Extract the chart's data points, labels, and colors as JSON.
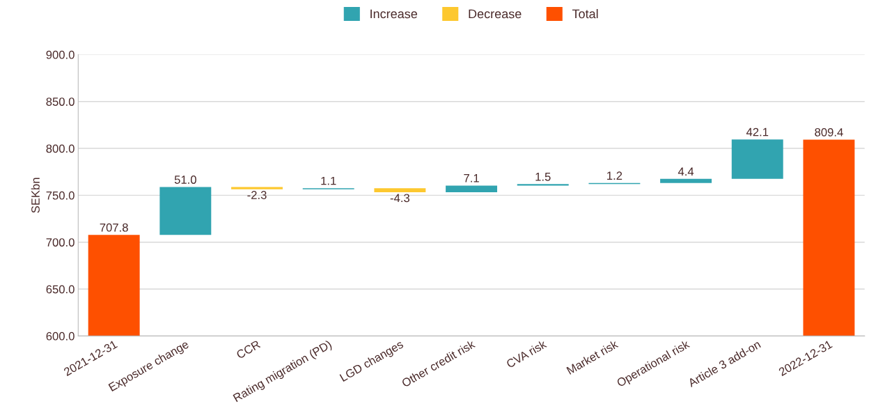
{
  "chart_data": {
    "type": "bar",
    "ylabel": "SEKbn",
    "categories": [
      "2021-12-31",
      "Exposure change",
      "CCR",
      "Rating migration (PD)",
      "LGD changes",
      "Other credit risk",
      "CVA risk",
      "Market risk",
      "Operational risk",
      "Article 3 add-on",
      "2022-12-31"
    ],
    "series": [
      {
        "name": "Increase",
        "color": "#31a4b0",
        "values": [
          null,
          51.0,
          null,
          1.1,
          null,
          7.1,
          1.5,
          1.2,
          4.4,
          42.1,
          null
        ],
        "value_labels": [
          null,
          "51.0",
          null,
          "1.1",
          null,
          "7.1",
          "1.5",
          "1.2",
          "4.4",
          "42.1",
          null
        ],
        "base": [
          null,
          707.8,
          null,
          756.5,
          null,
          753.3,
          760.4,
          761.9,
          763.1,
          767.5,
          null
        ]
      },
      {
        "name": "Decrease",
        "color": "#fdc82f",
        "values": [
          null,
          null,
          -2.3,
          null,
          -4.3,
          null,
          null,
          null,
          null,
          null,
          null
        ],
        "value_labels": [
          null,
          null,
          "-2.3",
          null,
          "-4.3",
          null,
          null,
          null,
          null,
          null,
          null
        ],
        "base": [
          null,
          null,
          758.8,
          null,
          757.6,
          null,
          null,
          null,
          null,
          null,
          null
        ]
      },
      {
        "name": "Total",
        "color": "#fe5000",
        "values": [
          707.8,
          null,
          null,
          null,
          null,
          null,
          null,
          null,
          null,
          null,
          809.4
        ],
        "value_labels": [
          "707.8",
          null,
          null,
          null,
          null,
          null,
          null,
          null,
          null,
          null,
          "809.4"
        ]
      }
    ],
    "ylim": [
      600,
      900
    ],
    "yticks": [
      {
        "value": 600,
        "label": "600.0"
      },
      {
        "value": 650,
        "label": "650.0"
      },
      {
        "value": 700,
        "label": "700.0"
      },
      {
        "value": 750,
        "label": "750.0"
      },
      {
        "value": 800,
        "label": "800.0"
      },
      {
        "value": 850,
        "label": "850.0"
      },
      {
        "value": 900,
        "label": "900.0"
      }
    ],
    "grid": "y",
    "legend": "top"
  }
}
